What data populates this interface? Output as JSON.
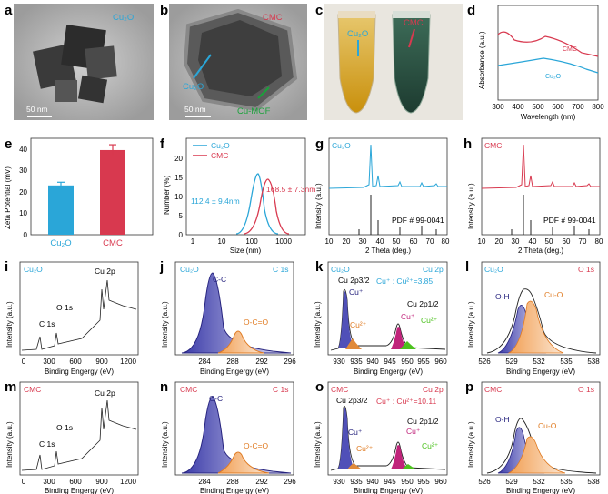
{
  "panels": {
    "a": {
      "letter": "a",
      "label": "Cu₂O",
      "scale": "50 nm"
    },
    "b": {
      "letter": "b",
      "label": "CMC",
      "scale": "50 nm",
      "arrow1": "Cu₂O",
      "arrow2": "Cu-MOF"
    },
    "c": {
      "letter": "c",
      "label1": "Cu₂O",
      "label2": "CMC"
    },
    "d": {
      "letter": "d",
      "ylabel": "Absorbance (a.u.)",
      "xlabel": "Wavelength (nm)",
      "ticks": [
        "300",
        "400",
        "500",
        "600",
        "700",
        "800"
      ],
      "s1": "CMC",
      "s2": "Cu₂O"
    },
    "e": {
      "letter": "e",
      "ylabel": "Zeta Potential (mV)",
      "yticks": [
        "0",
        "10",
        "20",
        "30",
        "40"
      ],
      "cats": [
        "Cu₂O",
        "CMC"
      ]
    },
    "f": {
      "letter": "f",
      "ylabel": "Number (%)",
      "xlabel": "Size (nm)",
      "yticks": [
        "0",
        "5",
        "10",
        "15",
        "20"
      ],
      "xticks": [
        "1",
        "10",
        "100",
        "1000"
      ],
      "leg1": "Cu₂O",
      "leg2": "CMC",
      "ann1": "112.4 ± 9.4nm",
      "ann2": "168.5 ± 7.3nm"
    },
    "g": {
      "letter": "g",
      "label": "Cu₂O",
      "ylabel": "Intensity (a.u.)",
      "xlabel": "2 Theta (deg.)",
      "pdf": "PDF # 99-0041",
      "ticks": [
        "10",
        "20",
        "30",
        "40",
        "50",
        "60",
        "70",
        "80"
      ]
    },
    "h": {
      "letter": "h",
      "label": "CMC",
      "ylabel": "Intensity (a.u.)",
      "xlabel": "2 Theta (deg.)",
      "pdf": "PDF # 99-0041",
      "ticks": [
        "10",
        "20",
        "30",
        "40",
        "50",
        "60",
        "70",
        "80"
      ]
    },
    "i": {
      "letter": "i",
      "label": "Cu₂O",
      "ylabel": "Intensity (a.u.)",
      "xlabel": "Binding Engergy (eV)",
      "ticks": [
        "0",
        "300",
        "600",
        "900",
        "1200"
      ],
      "p1": "C 1s",
      "p2": "O 1s",
      "p3": "Cu 2p"
    },
    "j": {
      "letter": "j",
      "label": "Cu₂O",
      "elem": "C 1s",
      "ylabel": "Intensity (a.u.)",
      "xlabel": "Binding Engergy (eV)",
      "ticks": [
        "284",
        "288",
        "292",
        "296"
      ],
      "p1": "C-C",
      "p2": "O-C=O"
    },
    "k": {
      "letter": "k",
      "label": "Cu₂O",
      "elem": "Cu 2p",
      "ylabel": "Intensity (a.u.)",
      "xlabel": "Binding Engergy (eV)",
      "ticks": [
        "930",
        "935",
        "940",
        "945",
        "950",
        "955",
        "960"
      ],
      "p32": "Cu 2p3/2",
      "p12": "Cu 2p1/2",
      "cu1": "Cu⁺",
      "cu2": "Cu²⁺",
      "ratio": "Cu⁺ : Cu²⁺=3.85"
    },
    "l": {
      "letter": "l",
      "label": "Cu₂O",
      "elem": "O 1s",
      "ylabel": "Intensity (a.u.)",
      "xlabel": "Binding Engergy (eV)",
      "ticks": [
        "526",
        "529",
        "532",
        "535",
        "538"
      ],
      "p1": "O-H",
      "p2": "Cu-O"
    },
    "m": {
      "letter": "m",
      "label": "CMC",
      "ylabel": "Intensity (a.u.)",
      "xlabel": "Binding Engergy (eV)",
      "ticks": [
        "0",
        "300",
        "600",
        "900",
        "1200"
      ],
      "p1": "C 1s",
      "p2": "O 1s",
      "p3": "Cu 2p"
    },
    "n": {
      "letter": "n",
      "label": "CMC",
      "elem": "C 1s",
      "ylabel": "Intensity (a.u.)",
      "xlabel": "Binding Engergy (eV)",
      "ticks": [
        "284",
        "288",
        "292",
        "296"
      ],
      "p1": "C-C",
      "p2": "O-C=O"
    },
    "o": {
      "letter": "o",
      "label": "CMC",
      "elem": "Cu 2p",
      "ylabel": "Intensity (a.u.)",
      "xlabel": "Binding Engergy (eV)",
      "ticks": [
        "930",
        "935",
        "940",
        "945",
        "950",
        "955",
        "960"
      ],
      "p32": "Cu 2p3/2",
      "p12": "Cu 2p1/2",
      "cu1": "Cu⁺",
      "cu2": "Cu²⁺",
      "ratio": "Cu⁺ : Cu²⁺=10.11"
    },
    "p": {
      "letter": "p",
      "label": "CMC",
      "elem": "O 1s",
      "ylabel": "Intensity (a.u.)",
      "xlabel": "Binding Engergy (eV)",
      "ticks": [
        "526",
        "529",
        "532",
        "535",
        "538"
      ],
      "p1": "O-H",
      "p2": "Cu-O"
    }
  },
  "chart_data": [
    {
      "panel": "e",
      "type": "bar",
      "categories": [
        "Cu₂O",
        "CMC"
      ],
      "values": [
        23,
        39.5
      ],
      "errors": [
        1.5,
        2.5
      ],
      "ylabel": "Zeta Potential (mV)",
      "ylim": [
        0,
        45
      ],
      "colors": [
        "#2aa6d8",
        "#d8394f"
      ]
    },
    {
      "panel": "f",
      "type": "line",
      "series": [
        {
          "name": "Cu₂O",
          "peak_nm": 112.4,
          "peak_pct": 16.5
        },
        {
          "name": "CMC",
          "peak_nm": 168.5,
          "peak_pct": 15.5
        }
      ],
      "xlabel": "Size (nm)",
      "ylabel": "Number (%)",
      "ylim": [
        0,
        25
      ]
    }
  ]
}
